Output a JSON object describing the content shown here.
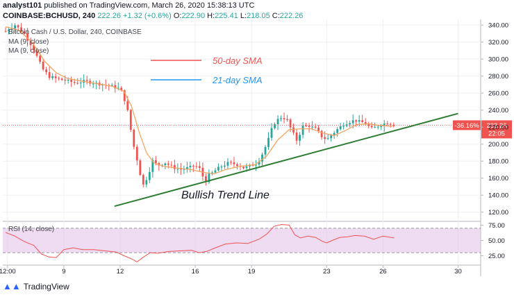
{
  "header": {
    "line1_user": "analyst101",
    "line1_rest": "published on TradingView.com, March 26, 2020 15:38:13 UTC",
    "symbol": "COINBASE:BCHUSD, 240",
    "last": "222.26",
    "change": "+1.32 (+0.6%)",
    "o_label": "O:",
    "o": "222.90",
    "h_label": "H:",
    "h": "225.41",
    "l_label": "L:",
    "l": "218.05",
    "c_label": "C:",
    "c": "222.26"
  },
  "legend": {
    "series_title": "Bitcoin Cash / U.S. Dollar, 240, COINBASE",
    "ma1": "MA (9, close)",
    "ma2": "MA (9, close)",
    "rsi": "RSI (14, close)"
  },
  "annotations": {
    "sma50": "50-day SMA",
    "sma21": "21-day SMA",
    "trend": "Bullish Trend Line"
  },
  "price_tag": {
    "pct": "-36.16%",
    "price": "222.26",
    "time": "22:05"
  },
  "brand": {
    "name": "TradingView"
  },
  "colors": {
    "up": "#26a69a",
    "down": "#ef5350",
    "ma": "#f4a460",
    "sma50": "#ef5350",
    "sma21": "#2196f3",
    "trend": "#2e7d32",
    "rsi_line": "#ef5350",
    "rsi_band": "#e1bee7",
    "axis_text": "#131722"
  },
  "chart_data": [
    {
      "type": "candlestick",
      "price_axis": {
        "ylim": [
          110,
          345
        ],
        "ticks": [
          120,
          140,
          160,
          180,
          200,
          220,
          240,
          260,
          280,
          300,
          320,
          340
        ]
      },
      "time_axis": {
        "xlim": [
          5.75,
          31.2
        ],
        "ticks": [
          {
            "x": 6.0,
            "label": "12:00"
          },
          {
            "x": 9.0,
            "label": "9"
          },
          {
            "x": 12.0,
            "label": "12"
          },
          {
            "x": 16.0,
            "label": "16"
          },
          {
            "x": 19.0,
            "label": "19"
          },
          {
            "x": 23.0,
            "label": "23"
          },
          {
            "x": 26.0,
            "label": "26"
          },
          {
            "x": 30.0,
            "label": "30"
          }
        ]
      },
      "close_path": [
        [
          5.9,
          333
        ],
        [
          6.4,
          340
        ],
        [
          6.9,
          330
        ],
        [
          7.4,
          312
        ],
        [
          7.8,
          290
        ],
        [
          8.2,
          280
        ],
        [
          8.6,
          277
        ],
        [
          9.1,
          275
        ],
        [
          9.6,
          272
        ],
        [
          10.1,
          274
        ],
        [
          10.6,
          272
        ],
        [
          11.1,
          270
        ],
        [
          11.6,
          268
        ],
        [
          12.0,
          265
        ],
        [
          12.3,
          250
        ],
        [
          12.5,
          225
        ],
        [
          12.75,
          195
        ],
        [
          13.0,
          175
        ],
        [
          13.2,
          150
        ],
        [
          13.4,
          160
        ],
        [
          13.7,
          180
        ],
        [
          14.0,
          175
        ],
        [
          14.4,
          178
        ],
        [
          14.8,
          173
        ],
        [
          15.2,
          170
        ],
        [
          15.6,
          172
        ],
        [
          16.0,
          175
        ],
        [
          16.3,
          170
        ],
        [
          16.5,
          155
        ],
        [
          16.7,
          162
        ],
        [
          17.0,
          168
        ],
        [
          17.4,
          174
        ],
        [
          17.8,
          178
        ],
        [
          18.2,
          176
        ],
        [
          18.6,
          172
        ],
        [
          19.0,
          175
        ],
        [
          19.3,
          178
        ],
        [
          19.6,
          190
        ],
        [
          19.9,
          205
        ],
        [
          20.2,
          225
        ],
        [
          20.6,
          232
        ],
        [
          20.9,
          228
        ],
        [
          21.2,
          212
        ],
        [
          21.4,
          205
        ],
        [
          21.7,
          220
        ],
        [
          22.0,
          222
        ],
        [
          22.4,
          218
        ],
        [
          22.7,
          210
        ],
        [
          23.0,
          205
        ],
        [
          23.3,
          212
        ],
        [
          23.6,
          218
        ],
        [
          24.0,
          225
        ],
        [
          24.5,
          228
        ],
        [
          25.0,
          225
        ],
        [
          25.4,
          218
        ],
        [
          25.8,
          222
        ],
        [
          26.2,
          225
        ],
        [
          26.6,
          222.26
        ]
      ],
      "ma9_path": [
        [
          5.9,
          338
        ],
        [
          6.6,
          334
        ],
        [
          7.3,
          320
        ],
        [
          8.0,
          297
        ],
        [
          8.6,
          284
        ],
        [
          9.2,
          277
        ],
        [
          10.0,
          274
        ],
        [
          10.8,
          271
        ],
        [
          11.6,
          268
        ],
        [
          12.2,
          262
        ],
        [
          12.6,
          245
        ],
        [
          13.0,
          215
        ],
        [
          13.4,
          190
        ],
        [
          13.8,
          178
        ],
        [
          14.3,
          174
        ],
        [
          15.0,
          172
        ],
        [
          15.8,
          170
        ],
        [
          16.4,
          167
        ],
        [
          17.0,
          165
        ],
        [
          17.6,
          170
        ],
        [
          18.4,
          174
        ],
        [
          19.2,
          176
        ],
        [
          19.8,
          186
        ],
        [
          20.4,
          205
        ],
        [
          21.0,
          217
        ],
        [
          21.6,
          218
        ],
        [
          22.2,
          218
        ],
        [
          22.8,
          213
        ],
        [
          23.4,
          210
        ],
        [
          24.0,
          216
        ],
        [
          24.6,
          223
        ],
        [
          25.2,
          224
        ],
        [
          25.8,
          222
        ],
        [
          26.5,
          221
        ]
      ],
      "trend_line": {
        "from": [
          11.7,
          127
        ],
        "to": [
          30.0,
          236
        ]
      },
      "current_price": 222.26
    },
    {
      "type": "line",
      "name": "RSI (14, close)",
      "ylim": [
        12,
        80
      ],
      "ticks": [
        25.0,
        50.0,
        75.0
      ],
      "band": [
        30,
        70
      ],
      "values_path": [
        [
          5.9,
          63
        ],
        [
          6.4,
          57
        ],
        [
          6.9,
          48
        ],
        [
          7.4,
          42
        ],
        [
          7.8,
          28
        ],
        [
          8.2,
          23
        ],
        [
          8.6,
          22
        ],
        [
          9.0,
          35
        ],
        [
          9.5,
          38
        ],
        [
          10.0,
          35
        ],
        [
          10.6,
          35
        ],
        [
          11.2,
          33
        ],
        [
          11.8,
          31
        ],
        [
          12.2,
          25
        ],
        [
          12.6,
          20
        ],
        [
          12.9,
          15
        ],
        [
          13.2,
          22
        ],
        [
          13.6,
          30
        ],
        [
          14.0,
          29
        ],
        [
          14.6,
          32
        ],
        [
          15.2,
          33
        ],
        [
          15.8,
          34
        ],
        [
          16.2,
          30
        ],
        [
          16.6,
          32
        ],
        [
          17.0,
          37
        ],
        [
          17.6,
          44
        ],
        [
          18.2,
          46
        ],
        [
          18.8,
          45
        ],
        [
          19.4,
          52
        ],
        [
          19.8,
          60
        ],
        [
          20.2,
          73
        ],
        [
          20.6,
          76
        ],
        [
          21.0,
          75
        ],
        [
          21.3,
          59
        ],
        [
          21.6,
          54
        ],
        [
          22.0,
          57
        ],
        [
          22.4,
          55
        ],
        [
          22.8,
          48
        ],
        [
          23.0,
          46
        ],
        [
          23.3,
          50
        ],
        [
          23.7,
          55
        ],
        [
          24.1,
          56
        ],
        [
          24.5,
          58
        ],
        [
          25.0,
          57
        ],
        [
          25.5,
          52
        ],
        [
          26.0,
          57
        ],
        [
          26.6,
          54
        ]
      ]
    }
  ]
}
